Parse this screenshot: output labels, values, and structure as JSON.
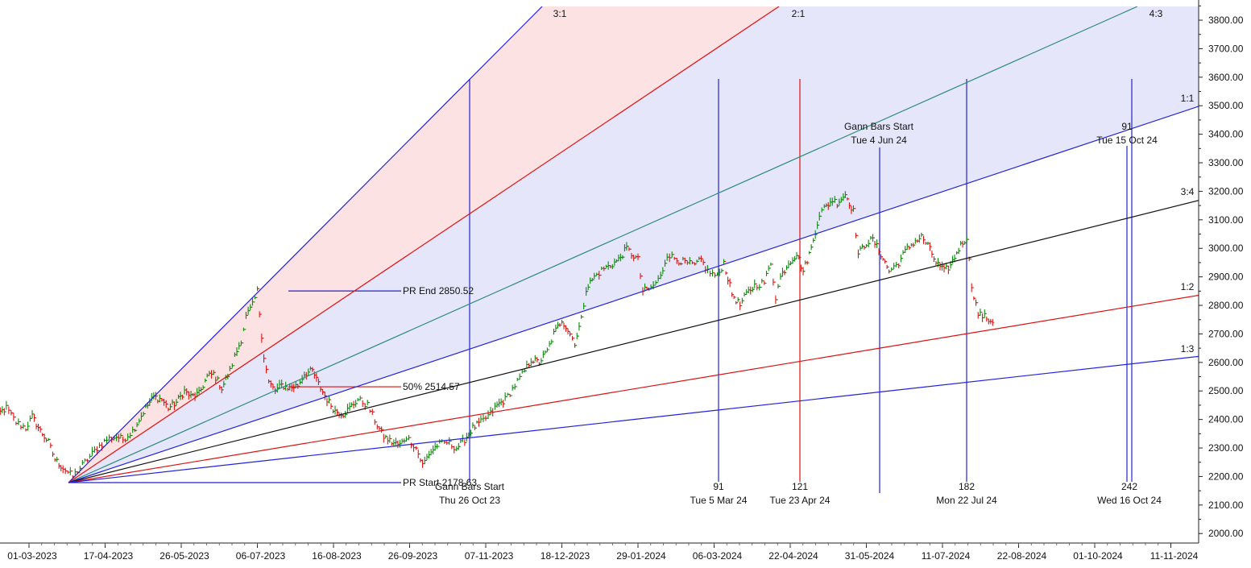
{
  "chart_data": {
    "type": "gann_fan_ohlc",
    "title": "",
    "xlabel": "",
    "ylabel": "",
    "grid": false,
    "x_tick_labels": [
      "01-03-2023",
      "17-04-2023",
      "26-05-2023",
      "06-07-2023",
      "16-08-2023",
      "26-09-2023",
      "07-11-2023",
      "18-12-2023",
      "29-01-2024",
      "06-03-2024",
      "22-04-2024",
      "31-05-2024",
      "11-07-2024",
      "22-08-2024",
      "01-10-2024",
      "11-11-2024"
    ],
    "y_tick_labels": [
      "2000.00",
      "2100.00",
      "2200.00",
      "2300.00",
      "2400.00",
      "2500.00",
      "2600.00",
      "2700.00",
      "2800.00",
      "2900.00",
      "3000.00",
      "3100.00",
      "3200.00",
      "3300.00",
      "3400.00",
      "3500.00",
      "3600.00",
      "3700.00",
      "3800.00"
    ],
    "ylim": [
      1970,
      3860
    ],
    "fan_lines": [
      {
        "label": "3:1",
        "color": "#2222dd"
      },
      {
        "label": "2:1",
        "color": "#dd1111"
      },
      {
        "label": "4:3",
        "color": "#2e8b7a"
      },
      {
        "label": "1:1",
        "color": "#2222dd"
      },
      {
        "label": "3:4",
        "color": "#111111"
      },
      {
        "label": "1:2",
        "color": "#dd1111"
      },
      {
        "label": "1:3",
        "color": "#2222dd"
      }
    ],
    "annotations": {
      "pr_end": "PR End 2850.52",
      "pr_mid": "50% 2514.57",
      "pr_start": "PR Start 2178.63",
      "gann_start_1": "Gann Bars Start",
      "gann_start_1_date": "Thu 26 Oct 23",
      "gann_start_2": "Gann Bars Start",
      "gann_start_2_date": "Tue 4 Jun 24",
      "bar_91": "91",
      "bar_91_date": "Tue 5 Mar 24",
      "bar_121": "121",
      "bar_121_date": "Tue 23 Apr 24",
      "bar_182": "182",
      "bar_182_date": "Mon 22 Jul 24",
      "bar_242": "242",
      "bar_242_date": "Wed 16 Oct 24",
      "bar_91b": "91",
      "bar_91b_date": "Tue 15 Oct 24"
    },
    "price_path": [
      [
        "2023-02-06",
        2340
      ],
      [
        "2023-02-10",
        2420
      ],
      [
        "2023-02-15",
        2440
      ],
      [
        "2023-02-21",
        2390
      ],
      [
        "2023-02-27",
        2370
      ],
      [
        "2023-03-03",
        2410
      ],
      [
        "2023-03-08",
        2360
      ],
      [
        "2023-03-13",
        2320
      ],
      [
        "2023-03-17",
        2260
      ],
      [
        "2023-03-22",
        2230
      ],
      [
        "2023-03-28",
        2200
      ],
      [
        "2023-04-03",
        2240
      ],
      [
        "2023-04-06",
        2260
      ],
      [
        "2023-04-12",
        2300
      ],
      [
        "2023-04-18",
        2330
      ],
      [
        "2023-04-24",
        2340
      ],
      [
        "2023-04-28",
        2330
      ],
      [
        "2023-05-04",
        2360
      ],
      [
        "2023-05-08",
        2400
      ],
      [
        "2023-05-12",
        2440
      ],
      [
        "2023-05-17",
        2480
      ],
      [
        "2023-05-22",
        2470
      ],
      [
        "2023-05-26",
        2440
      ],
      [
        "2023-05-31",
        2460
      ],
      [
        "2023-06-05",
        2500
      ],
      [
        "2023-06-09",
        2480
      ],
      [
        "2023-06-14",
        2490
      ],
      [
        "2023-06-19",
        2550
      ],
      [
        "2023-06-23",
        2560
      ],
      [
        "2023-06-28",
        2510
      ],
      [
        "2023-07-03",
        2570
      ],
      [
        "2023-07-06",
        2620
      ],
      [
        "2023-07-10",
        2680
      ],
      [
        "2023-07-13",
        2760
      ],
      [
        "2023-07-17",
        2800
      ],
      [
        "2023-07-20",
        2850
      ],
      [
        "2023-07-24",
        2620
      ],
      [
        "2023-07-27",
        2530
      ],
      [
        "2023-07-31",
        2500
      ],
      [
        "2023-08-04",
        2520
      ],
      [
        "2023-08-09",
        2510
      ],
      [
        "2023-08-14",
        2520
      ],
      [
        "2023-08-18",
        2560
      ],
      [
        "2023-08-23",
        2570
      ],
      [
        "2023-08-28",
        2510
      ],
      [
        "2023-09-01",
        2470
      ],
      [
        "2023-09-06",
        2430
      ],
      [
        "2023-09-11",
        2420
      ],
      [
        "2023-09-15",
        2440
      ],
      [
        "2023-09-20",
        2470
      ],
      [
        "2023-09-26",
        2450
      ],
      [
        "2023-10-02",
        2380
      ],
      [
        "2023-10-06",
        2340
      ],
      [
        "2023-10-11",
        2320
      ],
      [
        "2023-10-16",
        2310
      ],
      [
        "2023-10-20",
        2340
      ],
      [
        "2023-10-26",
        2300
      ],
      [
        "2023-10-30",
        2240
      ],
      [
        "2023-11-03",
        2280
      ],
      [
        "2023-11-08",
        2310
      ],
      [
        "2023-11-14",
        2320
      ],
      [
        "2023-11-20",
        2300
      ],
      [
        "2023-11-25",
        2330
      ],
      [
        "2023-11-30",
        2370
      ],
      [
        "2023-12-05",
        2390
      ],
      [
        "2023-12-11",
        2420
      ],
      [
        "2023-12-15",
        2450
      ],
      [
        "2023-12-20",
        2470
      ],
      [
        "2023-12-26",
        2520
      ],
      [
        "2024-01-01",
        2570
      ],
      [
        "2024-01-05",
        2610
      ],
      [
        "2024-01-10",
        2600
      ],
      [
        "2024-01-15",
        2640
      ],
      [
        "2024-01-19",
        2700
      ],
      [
        "2024-01-24",
        2750
      ],
      [
        "2024-01-29",
        2700
      ],
      [
        "2024-02-01",
        2670
      ],
      [
        "2024-02-05",
        2750
      ],
      [
        "2024-02-08",
        2860
      ],
      [
        "2024-02-13",
        2900
      ],
      [
        "2024-02-19",
        2930
      ],
      [
        "2024-02-23",
        2940
      ],
      [
        "2024-02-28",
        2960
      ],
      [
        "2024-03-04",
        3000
      ],
      [
        "2024-03-07",
        2980
      ],
      [
        "2024-03-11",
        2960
      ],
      [
        "2024-03-14",
        2850
      ],
      [
        "2024-03-19",
        2860
      ],
      [
        "2024-03-25",
        2900
      ],
      [
        "2024-03-29",
        2980
      ],
      [
        "2024-04-04",
        2960
      ],
      [
        "2024-04-09",
        2950
      ],
      [
        "2024-04-15",
        2940
      ],
      [
        "2024-04-19",
        2960
      ],
      [
        "2024-04-23",
        2920
      ],
      [
        "2024-04-29",
        2900
      ],
      [
        "2024-05-03",
        2950
      ],
      [
        "2024-05-08",
        2840
      ],
      [
        "2024-05-13",
        2800
      ],
      [
        "2024-05-17",
        2840
      ],
      [
        "2024-05-22",
        2870
      ],
      [
        "2024-05-28",
        2880
      ],
      [
        "2024-06-01",
        2950
      ],
      [
        "2024-06-04",
        2830
      ],
      [
        "2024-06-07",
        2900
      ],
      [
        "2024-06-12",
        2950
      ],
      [
        "2024-06-17",
        2980
      ],
      [
        "2024-06-21",
        2920
      ],
      [
        "2024-06-26",
        3000
      ],
      [
        "2024-07-01",
        3120
      ],
      [
        "2024-07-04",
        3140
      ],
      [
        "2024-07-09",
        3170
      ],
      [
        "2024-07-12",
        3160
      ],
      [
        "2024-07-17",
        3190
      ],
      [
        "2024-07-22",
        3130
      ],
      [
        "2024-07-25",
        2980
      ],
      [
        "2024-07-30",
        3020
      ],
      [
        "2024-08-03",
        3030
      ],
      [
        "2024-08-08",
        2980
      ],
      [
        "2024-08-13",
        2920
      ],
      [
        "2024-08-19",
        2950
      ],
      [
        "2024-08-23",
        2990
      ],
      [
        "2024-08-28",
        3020
      ],
      [
        "2024-09-02",
        3040
      ],
      [
        "2024-09-06",
        3010
      ],
      [
        "2024-09-11",
        2950
      ],
      [
        "2024-09-16",
        2920
      ],
      [
        "2024-09-20",
        2940
      ],
      [
        "2024-09-25",
        3000
      ],
      [
        "2024-09-30",
        3040
      ],
      [
        "2024-10-03",
        2870
      ],
      [
        "2024-10-07",
        2770
      ],
      [
        "2024-10-11",
        2760
      ],
      [
        "2024-10-16",
        2740
      ]
    ]
  }
}
